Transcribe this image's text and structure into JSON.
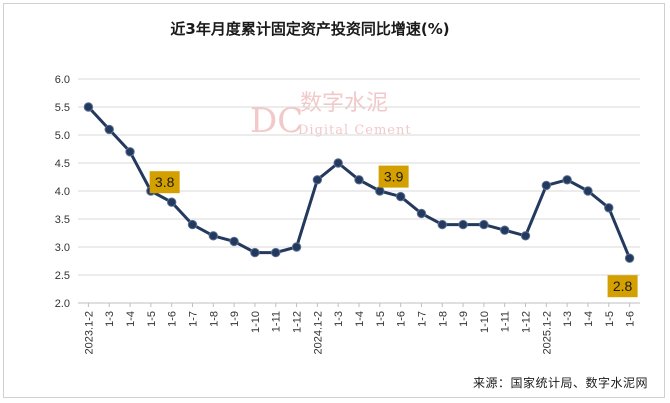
{
  "chart_data": {
    "type": "line",
    "title": "近3年月度累计固定资产投资同比增速(%)",
    "source": "来源：国家统计局、数字水泥网",
    "watermark": {
      "cn": "数字水泥",
      "en": "Digital Cement",
      "logo": "DC"
    },
    "ylim": [
      2.0,
      6.0
    ],
    "yticks": [
      "6.0",
      "5.5",
      "5.0",
      "4.5",
      "4.0",
      "3.5",
      "3.0",
      "2.5",
      "2.0"
    ],
    "categories": [
      "2023.1-2",
      "1-3",
      "1-4",
      "1-5",
      "1-6",
      "1-7",
      "1-8",
      "1-9",
      "1-10",
      "1-11",
      "1-12",
      "2024.1-2",
      "1-3",
      "1-4",
      "1-5",
      "1-6",
      "1-7",
      "1-8",
      "1-9",
      "1-10",
      "1-11",
      "1-12",
      "2025.1-2",
      "1-3",
      "1-4",
      "1-5",
      "1-6"
    ],
    "series": [
      {
        "values": [
          5.5,
          5.1,
          4.7,
          4.0,
          3.8,
          3.4,
          3.2,
          3.1,
          2.9,
          2.9,
          3.0,
          4.2,
          4.5,
          4.2,
          4.0,
          3.9,
          3.6,
          3.4,
          3.4,
          3.4,
          3.3,
          3.2,
          4.1,
          4.2,
          4.0,
          3.7,
          2.8
        ],
        "color": "#24395e"
      }
    ],
    "data_labels": [
      {
        "index": 4,
        "text": "3.8"
      },
      {
        "index": 15,
        "text": "3.9"
      },
      {
        "index": 26,
        "text": "2.8"
      }
    ],
    "label_box_color": "#d4a000",
    "grid": true,
    "grid_color": "#d9d9d9"
  }
}
